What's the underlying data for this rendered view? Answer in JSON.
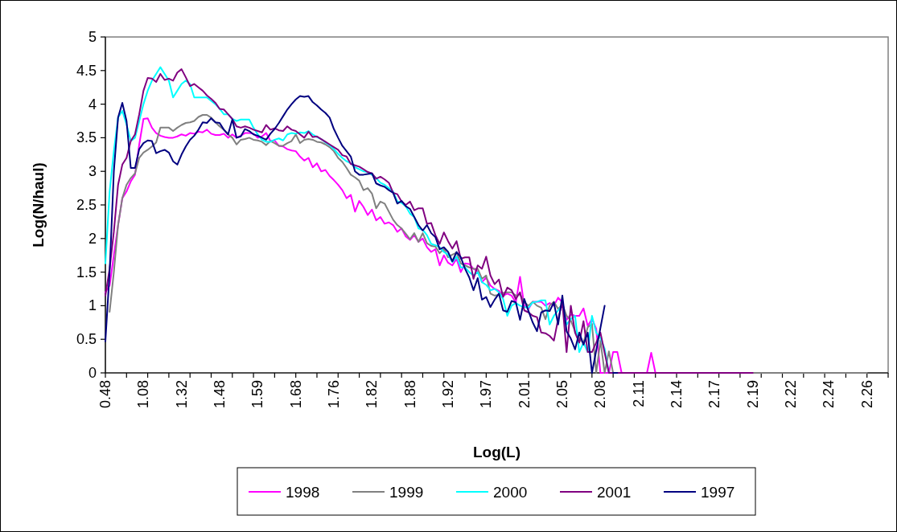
{
  "chart_data": {
    "type": "line",
    "xlabel": "Log(L)",
    "ylabel": "Log(N/haul)",
    "categories": [
      "0.48",
      null,
      null,
      null,
      null,
      null,
      null,
      null,
      null,
      "1.08",
      null,
      null,
      null,
      null,
      null,
      null,
      null,
      null,
      "1.32",
      null,
      null,
      null,
      null,
      null,
      null,
      null,
      null,
      "1.48",
      null,
      null,
      null,
      null,
      null,
      null,
      null,
      null,
      "1.59",
      null,
      null,
      null,
      null,
      null,
      null,
      null,
      null,
      "1.68",
      null,
      null,
      null,
      null,
      null,
      null,
      null,
      null,
      "1.76",
      null,
      null,
      null,
      null,
      null,
      null,
      null,
      null,
      "1.82",
      null,
      null,
      null,
      null,
      null,
      null,
      null,
      null,
      "1.88",
      null,
      null,
      null,
      null,
      null,
      null,
      null,
      null,
      "1.92",
      null,
      null,
      null,
      null,
      null,
      null,
      null,
      null,
      "1.97",
      null,
      null,
      null,
      null,
      null,
      null,
      null,
      null,
      "2.01",
      null,
      null,
      null,
      null,
      null,
      null,
      null,
      null,
      "2.05",
      null,
      null,
      null,
      null,
      null,
      null,
      null,
      null,
      "2.08",
      null,
      null,
      null,
      null,
      null,
      null,
      null,
      null,
      "2.11",
      null,
      null,
      null,
      null,
      null,
      null,
      null,
      null,
      "2.14",
      null,
      null,
      null,
      null,
      null,
      null,
      null,
      null,
      "2.17",
      null,
      null,
      null,
      null,
      null,
      null,
      null,
      null,
      "2.19",
      null,
      null,
      null,
      null,
      null,
      null,
      null,
      null,
      "2.22",
      null,
      null,
      null,
      null,
      null,
      null,
      null,
      null,
      "2.24",
      null,
      null,
      null,
      null,
      null,
      null,
      null,
      null,
      "2.26",
      null,
      null,
      null,
      null,
      null
    ],
    "ylim": [
      0,
      5
    ],
    "yticks": [
      0,
      0.5,
      1,
      1.5,
      2,
      2.5,
      3,
      3.5,
      4,
      4.5,
      5
    ],
    "legend": "bottom",
    "series": [
      {
        "name": "1998",
        "color": "#ff00ff",
        "values": [
          1.2,
          1.3,
          1.75,
          2.2,
          2.6,
          2.7,
          2.85,
          2.95,
          3.4,
          3.78,
          3.79,
          3.65,
          3.57,
          3.53,
          3.51,
          3.5,
          3.5,
          3.52,
          3.55,
          3.53,
          3.57,
          3.56,
          3.59,
          3.58,
          3.62,
          3.56,
          3.54,
          3.54,
          3.56,
          3.5,
          3.55,
          3.5,
          3.53,
          3.57,
          3.57,
          3.56,
          3.5,
          3.52,
          3.57,
          3.45,
          3.46,
          3.38,
          3.37,
          3.33,
          3.31,
          3.3,
          3.22,
          3.16,
          3.2,
          3.06,
          3.12,
          3.0,
          3.02,
          2.93,
          2.87,
          2.8,
          2.72,
          2.6,
          2.65,
          2.4,
          2.56,
          2.47,
          2.35,
          2.43,
          2.27,
          2.32,
          2.22,
          2.24,
          2.2,
          2.1,
          2.15,
          2.03,
          1.98,
          2.05,
          1.95,
          2.0,
          1.87,
          1.8,
          1.84,
          1.6,
          1.75,
          1.64,
          1.6,
          1.7,
          1.5,
          1.63,
          1.62,
          1.55,
          1.51,
          1.35,
          1.42,
          1.3,
          1.25,
          1.22,
          1.15,
          1.18,
          1.15,
          1.05,
          1.43,
          1.0,
          0.95,
          1.06,
          1.06,
          1.06,
          1.0,
          1.04,
          1.0,
          1.12,
          1.05,
          0.79,
          0.87,
          0.85,
          0.85,
          0.96,
          0.7,
          0.8,
          0.66,
          0,
          0,
          0,
          0.31,
          0.31,
          0,
          0,
          0,
          0,
          0,
          0,
          0,
          0.3,
          0,
          0,
          0,
          null,
          null,
          null,
          null,
          null,
          null,
          null,
          null,
          null,
          null,
          null,
          null,
          null,
          null,
          null,
          null,
          null,
          null,
          null,
          null,
          null,
          null,
          null,
          null,
          null,
          null,
          null,
          null,
          null,
          null,
          null,
          null,
          null,
          null,
          null,
          null,
          null,
          null,
          null,
          null,
          null,
          null,
          null,
          null,
          null,
          null,
          null,
          null,
          null,
          null,
          null,
          null,
          null
        ]
      },
      {
        "name": "1999",
        "color": "#808080",
        "values": [
          null,
          0.91,
          1.5,
          2.2,
          2.6,
          2.8,
          2.9,
          2.97,
          3.2,
          3.28,
          3.32,
          3.37,
          3.43,
          3.65,
          3.65,
          3.65,
          3.6,
          3.65,
          3.69,
          3.72,
          3.73,
          3.75,
          3.81,
          3.84,
          3.84,
          3.8,
          3.73,
          3.67,
          3.62,
          3.55,
          3.5,
          3.4,
          3.47,
          3.48,
          3.5,
          3.47,
          3.46,
          3.44,
          3.39,
          3.45,
          3.42,
          3.38,
          3.38,
          3.42,
          3.45,
          3.55,
          3.42,
          3.47,
          3.48,
          3.47,
          3.44,
          3.43,
          3.4,
          3.36,
          3.3,
          3.2,
          3.14,
          3.05,
          2.95,
          2.91,
          2.86,
          2.72,
          2.75,
          2.67,
          2.45,
          2.55,
          2.52,
          2.4,
          2.28,
          2.2,
          2.15,
          2.07,
          1.99,
          2.08,
          1.95,
          2.08,
          1.93,
          1.89,
          1.88,
          1.78,
          1.85,
          1.72,
          1.76,
          1.79,
          1.63,
          1.6,
          1.57,
          1.55,
          1.55,
          1.4,
          1.45,
          1.18,
          1.15,
          1.16,
          1.19,
          1.2,
          1.2,
          1.15,
          1.17,
          1.05,
          1.0,
          1.06,
          1.0,
          0.97,
          0.8,
          1.0,
          1.06,
          0.95,
          1.02,
          0.85,
          0.78,
          0.62,
          0.5,
          0.45,
          0.68,
          0.73,
          0,
          0.48,
          0,
          0.32,
          0,
          0,
          0,
          0,
          0,
          0,
          0,
          0,
          0,
          0,
          0,
          0,
          0,
          0,
          0,
          0,
          0,
          0,
          0,
          0,
          0,
          0,
          0,
          0,
          0,
          0,
          0,
          0,
          0,
          0,
          0,
          0,
          0,
          0,
          0,
          0,
          0,
          0,
          0,
          0,
          0,
          0,
          0,
          0,
          0,
          0,
          0,
          0,
          0,
          0,
          0,
          0,
          0,
          0,
          0,
          0,
          0,
          0,
          0,
          0,
          0,
          null,
          null,
          null,
          null,
          null
        ]
      },
      {
        "name": "2000",
        "color": "#00ffff",
        "values": [
          1.63,
          2.7,
          3.3,
          3.8,
          3.9,
          3.7,
          3.45,
          3.5,
          3.75,
          4.0,
          4.2,
          4.35,
          4.45,
          4.55,
          4.45,
          4.35,
          4.1,
          4.2,
          4.3,
          4.35,
          4.3,
          4.1,
          4.1,
          4.1,
          4.1,
          4.05,
          4.0,
          3.93,
          3.85,
          3.85,
          3.78,
          3.75,
          3.77,
          3.77,
          3.77,
          3.65,
          3.55,
          3.47,
          3.44,
          3.44,
          3.47,
          3.49,
          3.46,
          3.55,
          3.57,
          3.56,
          3.58,
          3.57,
          3.6,
          3.55,
          3.51,
          3.48,
          3.43,
          3.39,
          3.33,
          3.26,
          3.2,
          3.15,
          3.12,
          3.06,
          3.03,
          3.0,
          2.99,
          2.95,
          2.9,
          2.83,
          2.8,
          2.75,
          2.7,
          2.55,
          2.53,
          2.48,
          2.37,
          2.32,
          2.15,
          2.13,
          2.05,
          1.92,
          1.9,
          1.87,
          1.8,
          1.76,
          1.65,
          1.73,
          1.57,
          1.57,
          1.5,
          1.45,
          1.5,
          1.35,
          1.31,
          1.23,
          1.25,
          1.2,
          1.1,
          0.85,
          1.0,
          1.04,
          1.0,
          0.98,
          0.97,
          1.05,
          1.06,
          1.08,
          1.08,
          0.72,
          0.85,
          0.93,
          1.02,
          0.72,
          0.8,
          0.85,
          0.31,
          0.45,
          0.31,
          0.85,
          0.6,
          0.52,
          0.36,
          0,
          null,
          null,
          null,
          null,
          null,
          null,
          null,
          null,
          null,
          null,
          null,
          null,
          null,
          null,
          null,
          null,
          null,
          null,
          null,
          null,
          null,
          null,
          null,
          null,
          null,
          null,
          null,
          null,
          null,
          null,
          null,
          null,
          null,
          null,
          null,
          null,
          null,
          null,
          null,
          null,
          null,
          null,
          null,
          null,
          null,
          null,
          null,
          null,
          null,
          null,
          null,
          null,
          null,
          null,
          null,
          null,
          null,
          null,
          null,
          null,
          null,
          null,
          null,
          null,
          null,
          null
        ]
      },
      {
        "name": "2001",
        "color": "#800080",
        "values": [
          1.15,
          1.55,
          2.1,
          2.8,
          3.1,
          3.2,
          3.45,
          3.55,
          3.85,
          4.2,
          4.39,
          4.38,
          4.33,
          4.45,
          4.36,
          4.38,
          4.35,
          4.47,
          4.52,
          4.4,
          4.27,
          4.3,
          4.25,
          4.2,
          4.13,
          4.08,
          4.02,
          3.93,
          3.92,
          3.85,
          3.78,
          3.67,
          3.65,
          3.67,
          3.65,
          3.62,
          3.6,
          3.58,
          3.69,
          3.62,
          3.64,
          3.61,
          3.6,
          3.67,
          3.62,
          3.6,
          3.55,
          3.5,
          3.59,
          3.51,
          3.52,
          3.48,
          3.44,
          3.4,
          3.36,
          3.32,
          3.24,
          3.22,
          3.11,
          3.09,
          3.07,
          3.03,
          2.99,
          2.97,
          2.89,
          2.92,
          2.88,
          2.83,
          2.68,
          2.66,
          2.55,
          2.5,
          2.55,
          2.42,
          2.45,
          2.45,
          2.22,
          2.23,
          2.05,
          1.92,
          2.09,
          1.96,
          1.85,
          1.96,
          1.7,
          1.72,
          1.72,
          1.4,
          1.6,
          1.55,
          1.73,
          1.45,
          1.32,
          1.39,
          1.13,
          1.27,
          1.23,
          1.1,
          1.2,
          0.93,
          0.9,
          0.85,
          0.83,
          0.6,
          0.59,
          0.55,
          0.48,
          0.8,
          1.05,
          0.31,
          1.0,
          0.6,
          0.45,
          0.77,
          0.31,
          0.31,
          0.45,
          0.6,
          0.3,
          0,
          0,
          0,
          0,
          0,
          0,
          0,
          0,
          0,
          0,
          0,
          0,
          0,
          0,
          0,
          0,
          0,
          0,
          0,
          0,
          0,
          0,
          0,
          0,
          0,
          0,
          0,
          0,
          0,
          0,
          0,
          0,
          0,
          0,
          0,
          null,
          null,
          null,
          null,
          null,
          null,
          null,
          null,
          null,
          null,
          null,
          null,
          null,
          null,
          null,
          null,
          null,
          null,
          null,
          null,
          null,
          null,
          null,
          null,
          null,
          null,
          null,
          null,
          null,
          null,
          null,
          null
        ]
      },
      {
        "name": "1997",
        "color": "#000080",
        "values": [
          0.47,
          1.5,
          3.0,
          3.8,
          4.02,
          3.75,
          3.05,
          3.05,
          3.33,
          3.42,
          3.46,
          3.45,
          3.27,
          3.3,
          3.32,
          3.28,
          3.15,
          3.1,
          3.25,
          3.37,
          3.47,
          3.53,
          3.62,
          3.73,
          3.72,
          3.79,
          3.73,
          3.72,
          3.62,
          3.55,
          3.77,
          3.5,
          3.52,
          3.63,
          3.6,
          3.55,
          3.53,
          3.5,
          3.47,
          3.56,
          3.63,
          3.72,
          3.82,
          3.92,
          4.0,
          4.07,
          4.12,
          4.11,
          4.12,
          4.03,
          3.98,
          3.92,
          3.87,
          3.8,
          3.63,
          3.5,
          3.38,
          3.3,
          3.22,
          3.0,
          2.95,
          2.95,
          2.96,
          2.97,
          2.82,
          2.79,
          2.77,
          2.72,
          2.68,
          2.52,
          2.56,
          2.48,
          2.44,
          2.32,
          2.2,
          2.12,
          2.2,
          2.08,
          2.02,
          1.84,
          1.87,
          1.8,
          1.66,
          1.8,
          1.72,
          1.55,
          1.42,
          1.23,
          1.41,
          1.09,
          1.13,
          0.98,
          1.09,
          1.18,
          0.93,
          0.91,
          1.07,
          1.05,
          0.79,
          1.1,
          0.92,
          0.75,
          0.62,
          0.9,
          0.93,
          0.92,
          1.05,
          0.72,
          1.15,
          0.62,
          0.51,
          0.35,
          0.6,
          0.42,
          0.6,
          0,
          0.33,
          0.67,
          1.0,
          null,
          0,
          0,
          null,
          null,
          null,
          null,
          null,
          null,
          null,
          null,
          null,
          null,
          null,
          null,
          null,
          null,
          null,
          null,
          null,
          null,
          null,
          null,
          null,
          null,
          null,
          null,
          null,
          null,
          null,
          null,
          null,
          null,
          null,
          null,
          null,
          null,
          null,
          null,
          null,
          null,
          null,
          null,
          null,
          null,
          null,
          null,
          null,
          null,
          null,
          null,
          null,
          null,
          null,
          null,
          null,
          null,
          null,
          null,
          null,
          null,
          null,
          null,
          null,
          null,
          null,
          null
        ]
      }
    ]
  }
}
